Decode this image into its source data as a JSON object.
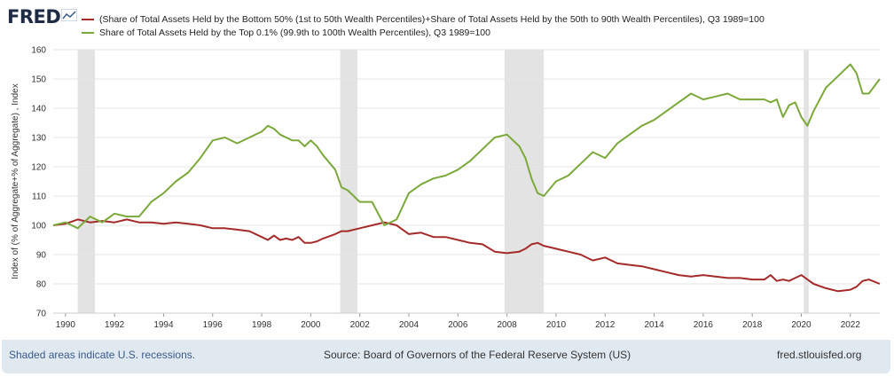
{
  "header": {
    "logo_text": "FRED"
  },
  "footer": {
    "recession_note": "Shaded areas indicate U.S. recessions.",
    "source": "Source: Board of Governors of the Federal Reserve System (US)",
    "site": "fred.stlouisfed.org"
  },
  "colors": {
    "bottom90": "#a52a2a",
    "top01": "#7ba83a",
    "recession": "#e3e3e3",
    "frame": "#e1e9f0"
  },
  "chart_data": {
    "type": "line",
    "ylabel": "Index of (% of Aggregate+% of Aggregate) , Index",
    "xlabel": "",
    "ylim": [
      70,
      160
    ],
    "xlim": [
      1989.5,
      2023.2
    ],
    "yticks": [
      "70",
      "80",
      "90",
      "100",
      "110",
      "120",
      "130",
      "140",
      "150",
      "160"
    ],
    "xticks": [
      "1990",
      "1992",
      "1994",
      "1996",
      "1998",
      "2000",
      "2002",
      "2004",
      "2006",
      "2008",
      "2010",
      "2012",
      "2014",
      "2016",
      "2018",
      "2020",
      "2022"
    ],
    "grid": true,
    "legend_position": "top-left",
    "recessions": [
      [
        1990.5,
        1991.2
      ],
      [
        2001.2,
        2001.9
      ],
      [
        2007.9,
        2009.5
      ],
      [
        2020.1,
        2020.3
      ]
    ],
    "series": [
      {
        "name": "(Share of Total Assets Held by the Bottom 50% (1st to 50th Wealth Percentiles)+Share of Total Assets Held by the 50th to 90th Wealth Percentiles), Q3 1989=100",
        "color_key": "bottom90",
        "x": [
          1989.5,
          1990,
          1990.5,
          1991,
          1991.5,
          1992,
          1992.5,
          1993,
          1993.5,
          1994,
          1994.5,
          1995,
          1995.5,
          1996,
          1996.5,
          1997,
          1997.5,
          1998,
          1998.25,
          1998.5,
          1998.75,
          1999,
          1999.25,
          1999.5,
          1999.75,
          2000,
          2000.25,
          2000.5,
          2001,
          2001.25,
          2001.5,
          2002,
          2002.5,
          2003,
          2003.5,
          2004,
          2004.5,
          2005,
          2005.5,
          2006,
          2006.5,
          2007,
          2007.5,
          2008,
          2008.5,
          2008.75,
          2009,
          2009.25,
          2009.5,
          2010,
          2010.5,
          2011,
          2011.5,
          2012,
          2012.5,
          2013,
          2013.5,
          2014,
          2014.5,
          2015,
          2015.5,
          2016,
          2016.5,
          2017,
          2017.5,
          2018,
          2018.5,
          2018.75,
          2019,
          2019.25,
          2019.5,
          2019.75,
          2020,
          2020.25,
          2020.5,
          2021,
          2021.5,
          2022,
          2022.25,
          2022.5,
          2022.75,
          2023.2
        ],
        "values": [
          100,
          100.5,
          102,
          101,
          101.5,
          101,
          102,
          101,
          101,
          100.5,
          101,
          100.5,
          100,
          99,
          99,
          98.5,
          98,
          96,
          95,
          96.5,
          95,
          95.5,
          95,
          96,
          94,
          94,
          94.5,
          95.5,
          97,
          98,
          98,
          99,
          100,
          101,
          100,
          97,
          97.5,
          96,
          96,
          95,
          94,
          93.5,
          91,
          90.5,
          91,
          92,
          93.5,
          94,
          93,
          92,
          91,
          90,
          88,
          89,
          87,
          86.5,
          86,
          85,
          84,
          83,
          82.5,
          83,
          82.5,
          82,
          82,
          81.5,
          81.5,
          83,
          81,
          81.5,
          81,
          82,
          83,
          81.5,
          80,
          78.5,
          77.5,
          78,
          79,
          81,
          81.5,
          80
        ]
      },
      {
        "name": "Share of Total Assets Held by the Top 0.1% (99.9th to 100th Wealth Percentiles), Q3 1989=100",
        "color_key": "top01",
        "x": [
          1989.5,
          1990,
          1990.5,
          1991,
          1991.5,
          1992,
          1992.5,
          1993,
          1993.5,
          1994,
          1994.5,
          1995,
          1995.5,
          1996,
          1996.5,
          1997,
          1997.5,
          1998,
          1998.25,
          1998.5,
          1998.75,
          1999,
          1999.25,
          1999.5,
          1999.75,
          2000,
          2000.25,
          2000.5,
          2001,
          2001.25,
          2001.5,
          2002,
          2002.5,
          2003,
          2003.5,
          2004,
          2004.5,
          2005,
          2005.5,
          2006,
          2006.5,
          2007,
          2007.5,
          2008,
          2008.5,
          2008.75,
          2009,
          2009.25,
          2009.5,
          2010,
          2010.5,
          2011,
          2011.5,
          2012,
          2012.5,
          2013,
          2013.5,
          2014,
          2014.5,
          2015,
          2015.5,
          2016,
          2016.5,
          2017,
          2017.5,
          2018,
          2018.5,
          2018.75,
          2019,
          2019.25,
          2019.5,
          2019.75,
          2020,
          2020.25,
          2020.5,
          2021,
          2021.5,
          2022,
          2022.25,
          2022.5,
          2022.75,
          2023.2
        ],
        "values": [
          100,
          101,
          99,
          103,
          101,
          104,
          103,
          103,
          108,
          111,
          115,
          118,
          123,
          129,
          130,
          128,
          130,
          132,
          134,
          133,
          131,
          130,
          129,
          129,
          127,
          129,
          127,
          124,
          119,
          113,
          112,
          108,
          108,
          100,
          102,
          111,
          114,
          116,
          117,
          119,
          122,
          126,
          130,
          131,
          127,
          123,
          116,
          111,
          110,
          115,
          117,
          121,
          125,
          123,
          128,
          131,
          134,
          136,
          139,
          142,
          145,
          143,
          144,
          145,
          143,
          143,
          143,
          142,
          143,
          137,
          141,
          142,
          137,
          134,
          139,
          147,
          151,
          155,
          152,
          145,
          145,
          150
        ]
      }
    ]
  }
}
